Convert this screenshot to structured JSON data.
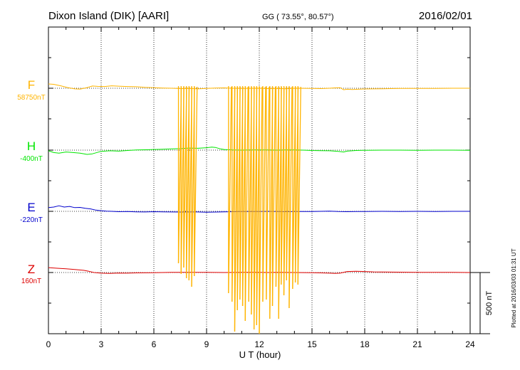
{
  "header": {
    "station": "Dixon Island (DIK)  [AARI]",
    "coords": "GG ( 73.55°,  80.57°)",
    "date": "2016/02/01"
  },
  "plotted_note": "Plotted at 2016/03/03 01:31  UT",
  "scale_label": "500 nT",
  "colors": {
    "F": "#ffb400",
    "H": "#00e600",
    "E": "#0000cc",
    "Z": "#dd0000"
  },
  "chart_data": {
    "type": "line",
    "xlabel": "U T (hour)",
    "xlim": [
      0,
      24
    ],
    "x_ticks": [
      "0",
      "3",
      "6",
      "9",
      "12",
      "15",
      "18",
      "21",
      "24"
    ],
    "series": [
      {
        "name": "F",
        "baseline_label": "58750nT",
        "points": [
          [
            0,
            35
          ],
          [
            0.3,
            32
          ],
          [
            0.7,
            20
          ],
          [
            1.1,
            5
          ],
          [
            1.5,
            -5
          ],
          [
            1.8,
            -7
          ],
          [
            2.2,
            5
          ],
          [
            2.5,
            18
          ],
          [
            2.8,
            15
          ],
          [
            3.2,
            14
          ],
          [
            3.6,
            20
          ],
          [
            4,
            17
          ],
          [
            4.5,
            14
          ],
          [
            5,
            12
          ],
          [
            5.5,
            7
          ],
          [
            6,
            4
          ],
          [
            6.5,
            2
          ],
          [
            7,
            0
          ],
          [
            7.3,
            -1
          ],
          [
            7.6,
            -3
          ],
          [
            8,
            -2
          ],
          [
            8.5,
            -5
          ],
          [
            9,
            -2
          ],
          [
            9.5,
            1
          ],
          [
            10,
            3
          ],
          [
            10.4,
            0
          ],
          [
            11,
            -2
          ],
          [
            12,
            0
          ],
          [
            12.5,
            -3
          ],
          [
            13,
            -1
          ],
          [
            13.5,
            -4
          ],
          [
            14,
            0
          ],
          [
            15,
            -2
          ],
          [
            15.5,
            -3
          ],
          [
            16,
            0
          ],
          [
            16.3,
            3
          ],
          [
            16.6,
            4
          ],
          [
            16.8,
            -12
          ],
          [
            17,
            -8
          ],
          [
            17.3,
            -10
          ],
          [
            18,
            -6
          ],
          [
            19,
            -4
          ],
          [
            20,
            -2
          ],
          [
            21,
            -2
          ],
          [
            22,
            -1
          ],
          [
            23,
            0
          ],
          [
            24,
            0
          ]
        ]
      },
      {
        "name": "H",
        "baseline_label": "-400nT",
        "points": [
          [
            0,
            -5
          ],
          [
            0.3,
            -20
          ],
          [
            0.6,
            -25
          ],
          [
            1,
            -15
          ],
          [
            1.4,
            -20
          ],
          [
            1.8,
            -25
          ],
          [
            2.2,
            -35
          ],
          [
            2.5,
            -30
          ],
          [
            3,
            -10
          ],
          [
            3.5,
            -5
          ],
          [
            4,
            -8
          ],
          [
            4.5,
            -3
          ],
          [
            5,
            2
          ],
          [
            5.5,
            3
          ],
          [
            6,
            5
          ],
          [
            6.5,
            7
          ],
          [
            7,
            10
          ],
          [
            7.5,
            12
          ],
          [
            8,
            17
          ],
          [
            8.5,
            15
          ],
          [
            9,
            20
          ],
          [
            9.3,
            25
          ],
          [
            9.5,
            22
          ],
          [
            9.8,
            10
          ],
          [
            10,
            5
          ],
          [
            10.5,
            1
          ],
          [
            11,
            0
          ],
          [
            11.5,
            1
          ],
          [
            12,
            2
          ],
          [
            12.5,
            1
          ],
          [
            13,
            0
          ],
          [
            13.5,
            2
          ],
          [
            14,
            1
          ],
          [
            14.5,
            0
          ],
          [
            15,
            -3
          ],
          [
            15.5,
            -4
          ],
          [
            16,
            -5
          ],
          [
            16.5,
            -10
          ],
          [
            16.8,
            -15
          ],
          [
            17,
            -8
          ],
          [
            17.5,
            -3
          ],
          [
            18,
            -1
          ],
          [
            19,
            0
          ],
          [
            20,
            0
          ],
          [
            21,
            -1
          ],
          [
            22,
            0
          ],
          [
            23,
            0
          ],
          [
            24,
            -1
          ]
        ]
      },
      {
        "name": "E",
        "baseline_label": "-220nT",
        "points": [
          [
            0,
            30
          ],
          [
            0.3,
            35
          ],
          [
            0.6,
            45
          ],
          [
            0.9,
            35
          ],
          [
            1.2,
            40
          ],
          [
            1.5,
            30
          ],
          [
            1.8,
            32
          ],
          [
            2.1,
            25
          ],
          [
            2.4,
            20
          ],
          [
            2.7,
            10
          ],
          [
            3,
            5
          ],
          [
            3.3,
            2
          ],
          [
            3.6,
            0
          ],
          [
            4,
            -3
          ],
          [
            4.5,
            -2
          ],
          [
            5,
            -4
          ],
          [
            5.5,
            -5
          ],
          [
            6,
            -3
          ],
          [
            6.5,
            -4
          ],
          [
            7,
            -5
          ],
          [
            7.5,
            -6
          ],
          [
            8,
            -5
          ],
          [
            8.5,
            -5
          ],
          [
            9,
            -7
          ],
          [
            9.5,
            -6
          ],
          [
            10,
            -4
          ],
          [
            10.5,
            -3
          ],
          [
            11,
            -2
          ],
          [
            12,
            -1
          ],
          [
            12.5,
            0
          ],
          [
            13,
            -2
          ],
          [
            13.5,
            -3
          ],
          [
            14,
            -1
          ],
          [
            15,
            -2
          ],
          [
            15.5,
            0
          ],
          [
            16,
            2
          ],
          [
            16.5,
            -2
          ],
          [
            17,
            -3
          ],
          [
            17.5,
            -1
          ],
          [
            18,
            -1
          ],
          [
            19,
            0
          ],
          [
            20,
            -1
          ],
          [
            21,
            0
          ],
          [
            22,
            -1
          ],
          [
            23,
            0
          ],
          [
            24,
            0
          ]
        ]
      },
      {
        "name": "Z",
        "baseline_label": "160nT",
        "points": [
          [
            0,
            40
          ],
          [
            0.5,
            35
          ],
          [
            1,
            30
          ],
          [
            1.5,
            25
          ],
          [
            2,
            18
          ],
          [
            2.3,
            10
          ],
          [
            2.6,
            0
          ],
          [
            3,
            -5
          ],
          [
            3.5,
            -7
          ],
          [
            4,
            -4
          ],
          [
            4.5,
            -5
          ],
          [
            5,
            -3
          ],
          [
            6,
            -2
          ],
          [
            6.5,
            0
          ],
          [
            7,
            2
          ],
          [
            7.5,
            1
          ],
          [
            8,
            2
          ],
          [
            8.5,
            2
          ],
          [
            9,
            1
          ],
          [
            10,
            0
          ],
          [
            11,
            2
          ],
          [
            12,
            1
          ],
          [
            12.5,
            0
          ],
          [
            13,
            1
          ],
          [
            14,
            0
          ],
          [
            15,
            -1
          ],
          [
            15.5,
            -3
          ],
          [
            16,
            -5
          ],
          [
            16.3,
            -7
          ],
          [
            16.6,
            -5
          ],
          [
            17,
            8
          ],
          [
            17.5,
            10
          ],
          [
            18,
            8
          ],
          [
            18.5,
            5
          ],
          [
            19,
            4
          ],
          [
            20,
            3
          ],
          [
            21,
            2
          ],
          [
            22,
            1
          ],
          [
            23,
            1
          ],
          [
            24,
            0
          ]
        ]
      }
    ],
    "F_spikes": [
      [
        7.4,
        8.2
      ],
      [
        7.55,
        8.7
      ],
      [
        7.7,
        8.4
      ],
      [
        7.85,
        8.9
      ],
      [
        8.0,
        9.0
      ],
      [
        8.15,
        9.3
      ],
      [
        8.3,
        8.8
      ],
      [
        10.25,
        9.6
      ],
      [
        10.45,
        10.0
      ],
      [
        10.6,
        11.4
      ],
      [
        10.75,
        10.4
      ],
      [
        10.9,
        9.9
      ],
      [
        11.05,
        10.2
      ],
      [
        11.2,
        10.9
      ],
      [
        11.4,
        10.0
      ],
      [
        11.55,
        10.6
      ],
      [
        11.7,
        11.3
      ],
      [
        11.85,
        11.1
      ],
      [
        12.0,
        11.5
      ],
      [
        12.2,
        10.0
      ],
      [
        12.4,
        9.9
      ],
      [
        12.6,
        10.8
      ],
      [
        12.75,
        10.2
      ],
      [
        12.95,
        9.3
      ],
      [
        13.1,
        10.8
      ],
      [
        13.25,
        9.2
      ],
      [
        13.4,
        9.7
      ],
      [
        13.55,
        9.0
      ],
      [
        13.7,
        10.3
      ],
      [
        13.9,
        9.4
      ],
      [
        14.05,
        9.1
      ],
      [
        14.2,
        9.2
      ]
    ]
  }
}
